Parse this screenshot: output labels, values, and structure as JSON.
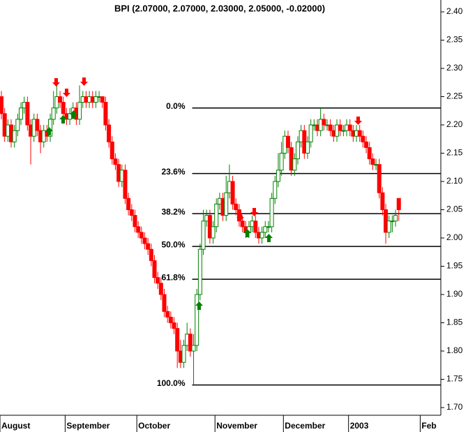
{
  "chart_data": {
    "type": "candlestick",
    "title": "BPI (2.07000, 2.07000, 2.03000, 2.05000, -0.02000)",
    "categories": [
      "August",
      null,
      null,
      null,
      null,
      null,
      null,
      null,
      null,
      null,
      null,
      null,
      null,
      null,
      null,
      null,
      null,
      null,
      null,
      null,
      "September",
      null,
      null,
      null,
      null,
      null,
      null,
      null,
      null,
      null,
      null,
      null,
      null,
      null,
      null,
      null,
      null,
      null,
      null,
      null,
      null,
      null,
      "October",
      null,
      null,
      null,
      null,
      null,
      null,
      null,
      null,
      null,
      null,
      null,
      null,
      null,
      null,
      null,
      null,
      null,
      null,
      null,
      null,
      null,
      null,
      null,
      "November",
      null,
      null,
      null,
      null,
      null,
      null,
      null,
      null,
      null,
      null,
      null,
      null,
      null,
      null,
      null,
      null,
      null,
      null,
      null,
      null,
      "December",
      null,
      null,
      null,
      null,
      null,
      null,
      null,
      null,
      null,
      null,
      null,
      null,
      null,
      null,
      null,
      null,
      null,
      null,
      null,
      "2003",
      null,
      null,
      null,
      null,
      null,
      null,
      null,
      null,
      null,
      null,
      null,
      null,
      null,
      null,
      null,
      null,
      null,
      null,
      null,
      null,
      null,
      "Feb",
      null,
      null,
      null,
      null
    ],
    "open": [
      2.25,
      2.22,
      2.18,
      2.2,
      2.17,
      2.19,
      2.21,
      2.23,
      2.24,
      2.2,
      2.18,
      2.21,
      2.19,
      2.17,
      2.19,
      2.18,
      2.21,
      2.23,
      2.25,
      2.24,
      2.22,
      2.21,
      2.22,
      2.23,
      2.21,
      2.24,
      2.25,
      2.24,
      2.25,
      2.24,
      2.25,
      2.25,
      2.24,
      2.2,
      2.17,
      2.14,
      2.13,
      2.1,
      2.12,
      2.07,
      2.05,
      2.04,
      2.02,
      2.01,
      2.0,
      1.99,
      1.98,
      1.96,
      1.93,
      1.92,
      1.9,
      1.87,
      1.86,
      1.85,
      1.84,
      1.8,
      1.78,
      1.81,
      1.83,
      1.8,
      1.81,
      1.9,
      1.98,
      2.03,
      2.04,
      2.0,
      2.02,
      2.06,
      2.07,
      2.04,
      2.08,
      2.1,
      2.06,
      2.05,
      2.03,
      2.02,
      2.01,
      2.02,
      2.03,
      2.01,
      2.0,
      2.01,
      2.02,
      2.02,
      2.07,
      2.1,
      2.12,
      2.15,
      2.18,
      2.16,
      2.12,
      2.14,
      2.17,
      2.19,
      2.15,
      2.17,
      2.2,
      2.2,
      2.19,
      2.21,
      2.2,
      2.2,
      2.19,
      2.18,
      2.2,
      2.19,
      2.19,
      2.2,
      2.19,
      2.18,
      2.19,
      2.18,
      2.17,
      2.16,
      2.14,
      2.13,
      2.13,
      2.08,
      2.05,
      2.01,
      2.03,
      2.03,
      2.07,
      null,
      null,
      null,
      null,
      null,
      null,
      null,
      null,
      null,
      null,
      null
    ],
    "high": [
      2.26,
      2.23,
      2.21,
      2.21,
      2.2,
      2.22,
      2.24,
      2.25,
      2.25,
      2.21,
      2.22,
      2.22,
      2.2,
      2.2,
      2.2,
      2.22,
      2.26,
      2.27,
      2.26,
      2.25,
      2.23,
      2.23,
      2.24,
      2.24,
      2.27,
      2.26,
      2.26,
      2.26,
      2.26,
      2.26,
      2.26,
      2.25,
      2.25,
      2.21,
      2.18,
      2.15,
      2.14,
      2.13,
      2.13,
      2.08,
      2.06,
      2.05,
      2.03,
      2.02,
      2.01,
      2.0,
      1.99,
      1.97,
      1.94,
      1.93,
      1.91,
      1.88,
      1.87,
      1.86,
      1.85,
      1.82,
      1.82,
      1.85,
      1.84,
      1.83,
      1.91,
      1.99,
      2.05,
      2.05,
      2.05,
      2.03,
      2.07,
      2.08,
      2.08,
      2.11,
      2.13,
      2.11,
      2.07,
      2.06,
      2.04,
      2.03,
      2.03,
      2.04,
      2.04,
      2.02,
      2.02,
      2.03,
      2.03,
      2.08,
      2.11,
      2.15,
      2.17,
      2.19,
      2.19,
      2.17,
      2.15,
      2.18,
      2.2,
      2.2,
      2.18,
      2.21,
      2.21,
      2.21,
      2.23,
      2.22,
      2.21,
      2.21,
      2.2,
      2.21,
      2.21,
      2.2,
      2.21,
      2.21,
      2.2,
      2.2,
      2.2,
      2.19,
      2.18,
      2.17,
      2.15,
      2.14,
      2.14,
      2.09,
      2.06,
      2.04,
      2.04,
      2.05,
      2.07,
      null,
      null,
      null,
      null,
      null,
      null,
      null,
      null,
      null,
      null,
      null
    ],
    "low": [
      2.21,
      2.17,
      2.17,
      2.16,
      2.16,
      2.18,
      2.2,
      2.22,
      2.19,
      2.13,
      2.17,
      2.18,
      2.15,
      2.16,
      2.17,
      2.17,
      2.2,
      2.22,
      2.23,
      2.21,
      2.2,
      2.2,
      2.21,
      2.2,
      2.2,
      2.23,
      2.23,
      2.23,
      2.23,
      2.23,
      2.24,
      2.23,
      2.19,
      2.16,
      2.13,
      2.12,
      2.09,
      2.09,
      2.06,
      2.04,
      2.03,
      2.01,
      2.0,
      1.99,
      1.98,
      1.97,
      1.95,
      1.92,
      1.91,
      1.89,
      1.86,
      1.85,
      1.84,
      1.83,
      1.77,
      1.77,
      1.77,
      1.8,
      1.79,
      1.74,
      1.8,
      1.89,
      1.97,
      2.02,
      1.99,
      1.99,
      2.01,
      2.05,
      2.03,
      2.03,
      2.07,
      2.05,
      2.04,
      2.02,
      2.01,
      2.0,
      2.0,
      2.01,
      2.0,
      1.99,
      1.99,
      2.0,
      2.01,
      2.01,
      2.06,
      2.09,
      2.11,
      2.14,
      2.15,
      2.11,
      2.11,
      2.13,
      2.16,
      2.14,
      2.14,
      2.16,
      2.19,
      2.18,
      2.18,
      2.19,
      2.19,
      2.18,
      2.17,
      2.17,
      2.18,
      2.18,
      2.18,
      2.18,
      2.17,
      2.17,
      2.17,
      2.16,
      2.15,
      2.13,
      2.12,
      2.12,
      2.07,
      2.04,
      1.99,
      2.0,
      2.01,
      2.02,
      2.03,
      null,
      null,
      null,
      null,
      null,
      null,
      null,
      null,
      null,
      null,
      null
    ],
    "close": [
      2.22,
      2.18,
      2.2,
      2.17,
      2.19,
      2.21,
      2.23,
      2.24,
      2.2,
      2.18,
      2.21,
      2.19,
      2.17,
      2.19,
      2.18,
      2.21,
      2.23,
      2.25,
      2.24,
      2.22,
      2.21,
      2.22,
      2.23,
      2.21,
      2.24,
      2.25,
      2.24,
      2.25,
      2.24,
      2.25,
      2.25,
      2.24,
      2.2,
      2.17,
      2.14,
      2.13,
      2.1,
      2.12,
      2.07,
      2.05,
      2.04,
      2.02,
      2.01,
      2.0,
      1.99,
      1.98,
      1.96,
      1.93,
      1.92,
      1.9,
      1.87,
      1.86,
      1.85,
      1.84,
      1.8,
      1.78,
      1.81,
      1.83,
      1.8,
      1.81,
      1.9,
      1.98,
      2.03,
      2.04,
      2.0,
      2.02,
      2.06,
      2.07,
      2.04,
      2.08,
      2.1,
      2.06,
      2.05,
      2.03,
      2.02,
      2.01,
      2.02,
      2.03,
      2.01,
      2.0,
      2.01,
      2.02,
      2.02,
      2.07,
      2.1,
      2.12,
      2.15,
      2.18,
      2.16,
      2.12,
      2.14,
      2.17,
      2.19,
      2.15,
      2.17,
      2.2,
      2.2,
      2.19,
      2.21,
      2.2,
      2.2,
      2.19,
      2.18,
      2.2,
      2.19,
      2.19,
      2.2,
      2.19,
      2.18,
      2.19,
      2.18,
      2.17,
      2.16,
      2.14,
      2.13,
      2.13,
      2.08,
      2.05,
      2.01,
      2.03,
      2.03,
      2.04,
      2.05,
      null,
      null,
      null,
      null,
      null,
      null,
      null,
      null,
      null,
      null,
      null
    ],
    "up_color": "#008000",
    "down_color": "#ff0000",
    "fib_labels": [
      "0.0%",
      "23.6%",
      "38.2%",
      "50.0%",
      "61.8%",
      "100.0%"
    ],
    "fib_values": [
      2.23,
      2.114,
      2.043,
      1.985,
      1.927,
      1.74
    ],
    "ylim": [
      1.7,
      2.4
    ],
    "yticks": [
      {
        "value": 1.7,
        "label": "1.70"
      },
      {
        "value": 1.75,
        "label": "1.75"
      },
      {
        "value": 1.8,
        "label": "1.80"
      },
      {
        "value": 1.85,
        "label": "1.85"
      },
      {
        "value": 1.9,
        "label": "1.90"
      },
      {
        "value": 1.95,
        "label": "1.95"
      },
      {
        "value": 2.0,
        "label": "2.00"
      },
      {
        "value": 2.05,
        "label": "2.05"
      },
      {
        "value": 2.1,
        "label": "2.10"
      },
      {
        "value": 2.15,
        "label": "2.15"
      },
      {
        "value": 2.2,
        "label": "2.20"
      },
      {
        "value": 2.25,
        "label": "2.25"
      },
      {
        "value": 2.3,
        "label": "2.30"
      },
      {
        "value": 2.35,
        "label": "2.35"
      },
      {
        "value": 2.4,
        "label": "2.40"
      }
    ]
  }
}
